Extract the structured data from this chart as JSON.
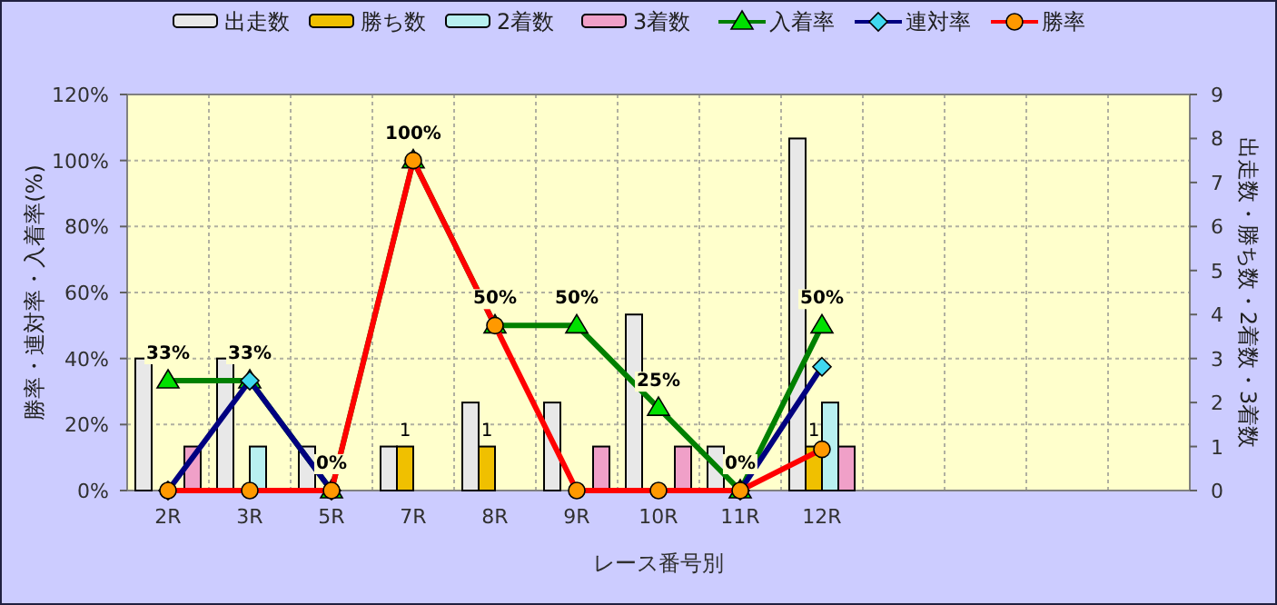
{
  "chart_data": {
    "type": "bar",
    "xlabel": "レース番号別",
    "ylabel": "勝率・連対率・入着率(%)",
    "y2label": "出走数・勝ち数・2着数・3着数",
    "categories": [
      "2R",
      "3R",
      "5R",
      "7R",
      "8R",
      "9R",
      "10R",
      "11R",
      "12R",
      null,
      null,
      null,
      null
    ],
    "series": [
      {
        "name": "出走数",
        "axis": "y2",
        "color": "#e8e8e8",
        "values": [
          3,
          3,
          1,
          1,
          2,
          2,
          4,
          1,
          8,
          null,
          null,
          null,
          null
        ]
      },
      {
        "name": "勝ち数",
        "axis": "y2",
        "color": "#f0c000",
        "values": [
          0,
          0,
          0,
          1,
          1,
          0,
          0,
          0,
          1,
          null,
          null,
          null,
          null
        ],
        "value_labels": [
          null,
          null,
          null,
          "1",
          "1",
          null,
          null,
          null,
          "1",
          null,
          null,
          null,
          null
        ]
      },
      {
        "name": "2着数",
        "axis": "y2",
        "color": "#b8f0f0",
        "values": [
          0,
          1,
          0,
          0,
          0,
          0,
          0,
          0,
          2,
          null,
          null,
          null,
          null
        ]
      },
      {
        "name": "3着数",
        "axis": "y2",
        "color": "#f0a0c8",
        "values": [
          1,
          0,
          0,
          0,
          0,
          1,
          1,
          0,
          1,
          null,
          null,
          null,
          null
        ]
      },
      {
        "name": "入着率",
        "type": "line",
        "axis": "y",
        "color": "#008000",
        "marker": "triangle",
        "values": [
          33.3,
          33.3,
          0,
          100,
          50,
          50,
          25,
          0,
          50,
          null,
          null,
          null,
          null
        ],
        "value_labels": [
          "33%",
          "33%",
          "0%",
          "100%",
          "50%",
          "50%",
          "25%",
          "0%",
          "50%",
          null,
          null,
          null,
          null
        ]
      },
      {
        "name": "連対率",
        "type": "line",
        "axis": "y",
        "color": "#000080",
        "marker": "diamond",
        "values": [
          0,
          33.3,
          0,
          null,
          null,
          null,
          null,
          0,
          37.5,
          null,
          null,
          null,
          null
        ]
      },
      {
        "name": "勝率",
        "type": "line",
        "axis": "y",
        "color": "#ff0000",
        "marker": "circle",
        "values": [
          0,
          0,
          0,
          100,
          50,
          0,
          0,
          0,
          12.5,
          null,
          null,
          null,
          null
        ]
      }
    ],
    "ylim": [
      0,
      120
    ],
    "yticks": [
      {
        "value": 0,
        "label": "0%"
      },
      {
        "value": 20,
        "label": "20%"
      },
      {
        "value": 40,
        "label": "40%"
      },
      {
        "value": 60,
        "label": "60%"
      },
      {
        "value": 80,
        "label": "80%"
      },
      {
        "value": 100,
        "label": "100%"
      },
      {
        "value": 120,
        "label": "120%"
      }
    ],
    "y2lim": [
      0,
      9
    ],
    "y2ticks": [
      0,
      1,
      2,
      3,
      4,
      5,
      6,
      7,
      8,
      9
    ],
    "grid": true,
    "legend": "top"
  }
}
